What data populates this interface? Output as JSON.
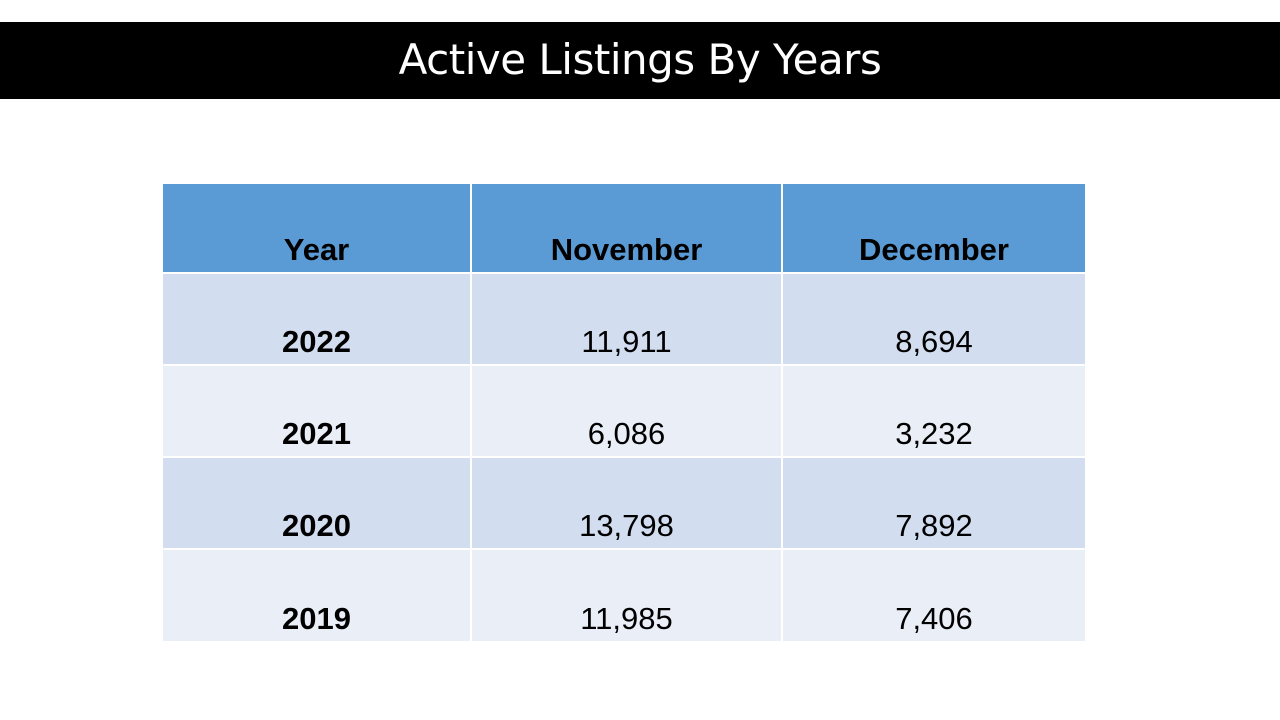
{
  "slide": {
    "title": "Active Listings By Years"
  },
  "colors": {
    "title_bar": "#000000",
    "title_text": "#ffffff",
    "header_fill": "#5b9bd5",
    "row_fill_dark": "#d2ddef",
    "row_fill_light": "#e9eef7"
  },
  "table": {
    "headers": [
      "Year",
      "November",
      "December"
    ],
    "rows": [
      {
        "year": "2022",
        "november": "11,911",
        "december": "8,694"
      },
      {
        "year": "2021",
        "november": "6,086",
        "december": "3,232"
      },
      {
        "year": "2020",
        "november": "13,798",
        "december": "7,892"
      },
      {
        "year": "2019",
        "november": "11,985",
        "december": "7,406"
      }
    ]
  },
  "chart_data": {
    "type": "table",
    "title": "Active Listings By Years",
    "columns": [
      "Year",
      "November",
      "December"
    ],
    "rows": [
      [
        "2022",
        11911,
        8694
      ],
      [
        "2021",
        6086,
        3232
      ],
      [
        "2020",
        13798,
        7892
      ],
      [
        "2019",
        11985,
        7406
      ]
    ]
  }
}
